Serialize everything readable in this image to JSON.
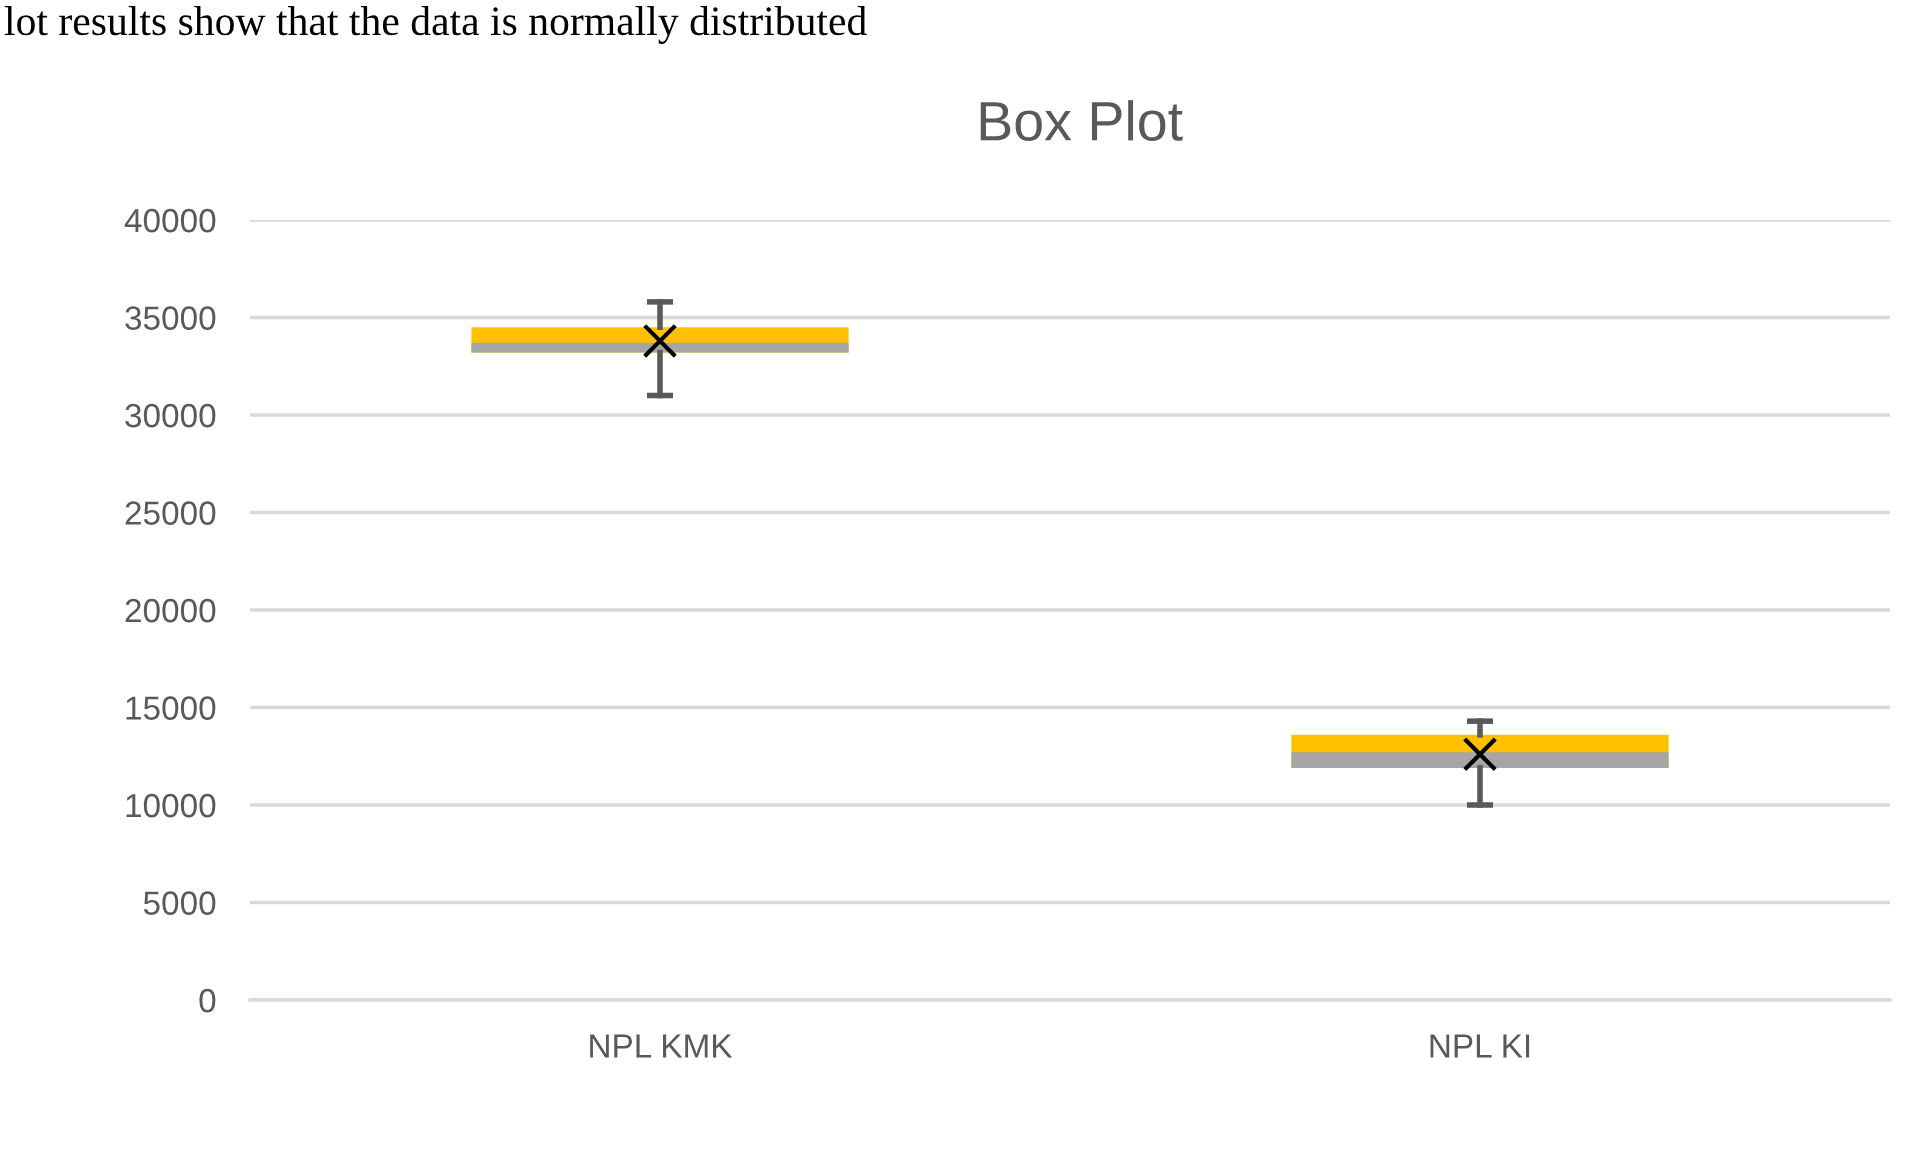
{
  "chart_data": {
    "type": "box",
    "title": "Box Plot",
    "annotations": [
      "lot results show that the data is normally distributed"
    ],
    "categories": [
      "NPL KMK",
      "NPL KI"
    ],
    "boxes": [
      {
        "low": 31000,
        "q1": 33200,
        "median": 33700,
        "q3": 34500,
        "high": 35800,
        "mean": 33800
      },
      {
        "low": 10000,
        "q1": 11900,
        "median": 12700,
        "q3": 13600,
        "high": 14300,
        "mean": 12600
      }
    ],
    "colors": [
      "#ffc000",
      "#ffc000"
    ],
    "ylim": [
      0,
      40000
    ],
    "yticks": [
      0,
      5000,
      10000,
      15000,
      20000,
      25000,
      30000,
      35000,
      40000
    ],
    "grid": "y",
    "legend": false,
    "marker": "cross"
  }
}
